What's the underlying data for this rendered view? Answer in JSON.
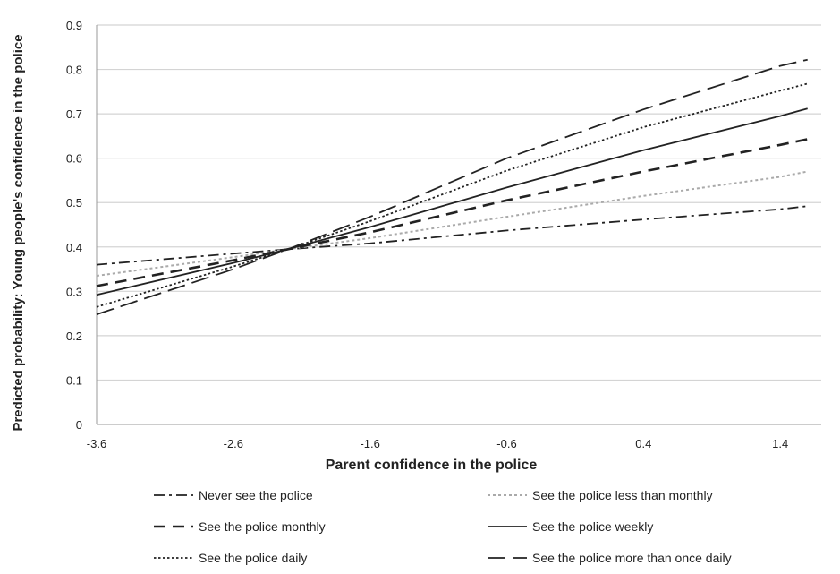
{
  "chart_data": {
    "type": "line",
    "title": "",
    "xlabel": "Parent confidence in the police",
    "ylabel": "Predicted probability: Young people's confidence in the police",
    "xlim": [
      -3.6,
      1.7
    ],
    "ylim": [
      0,
      0.9
    ],
    "xticks": [
      -3.6,
      -2.6,
      -1.6,
      -0.6,
      0.4,
      1.4
    ],
    "xtick_labels": [
      "-3.6",
      "-2.6",
      "-1.6",
      "-0.6",
      "0.4",
      "1.4"
    ],
    "yticks": [
      0,
      0.1,
      0.2,
      0.3,
      0.4,
      0.5,
      0.6,
      0.7,
      0.8,
      0.9
    ],
    "ytick_labels": [
      "0",
      "0.1",
      "0.2",
      "0.3",
      "0.4",
      "0.5",
      "0.6",
      "0.7",
      "0.8",
      "0.9"
    ],
    "grid": "horizontal",
    "legend_position": "bottom",
    "x": [
      -3.6,
      -2.6,
      -2.2,
      -1.6,
      -0.6,
      0.4,
      1.4,
      1.6
    ],
    "series": [
      {
        "name": "Never see the police",
        "style": "dashdot",
        "color": "#222222",
        "width": 1.8,
        "values": [
          0.36,
          0.385,
          0.395,
          0.408,
          0.437,
          0.462,
          0.485,
          0.492
        ]
      },
      {
        "name": "See the police less than monthly",
        "style": "dotted",
        "color": "#aaaaaa",
        "width": 2.0,
        "values": [
          0.335,
          0.377,
          0.395,
          0.42,
          0.468,
          0.515,
          0.558,
          0.57
        ]
      },
      {
        "name": "See the police monthly",
        "style": "dashed",
        "color": "#222222",
        "width": 2.6,
        "values": [
          0.312,
          0.37,
          0.395,
          0.433,
          0.505,
          0.57,
          0.63,
          0.643
        ]
      },
      {
        "name": "See the police weekly",
        "style": "solid",
        "color": "#222222",
        "width": 1.8,
        "values": [
          0.292,
          0.364,
          0.395,
          0.445,
          0.534,
          0.618,
          0.695,
          0.712
        ]
      },
      {
        "name": "See the police daily",
        "style": "fine-dotted",
        "color": "#222222",
        "width": 1.8,
        "values": [
          0.265,
          0.356,
          0.395,
          0.458,
          0.572,
          0.67,
          0.752,
          0.768
        ]
      },
      {
        "name": "See the police more than once daily",
        "style": "longdash",
        "color": "#222222",
        "width": 1.8,
        "values": [
          0.248,
          0.35,
          0.395,
          0.468,
          0.6,
          0.71,
          0.808,
          0.822
        ]
      }
    ]
  }
}
